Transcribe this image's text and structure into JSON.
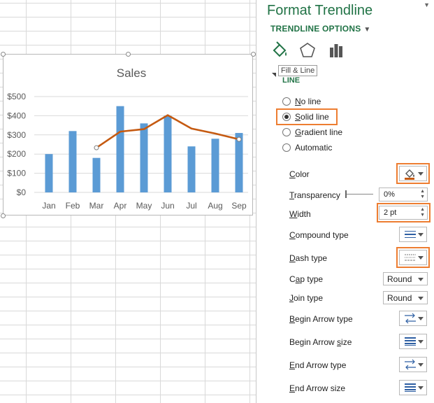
{
  "chart_data": {
    "type": "bar",
    "title": "Sales",
    "categories": [
      "Jan",
      "Feb",
      "Mar",
      "Apr",
      "May",
      "Jun",
      "Jul",
      "Aug",
      "Sep"
    ],
    "values": [
      200,
      320,
      180,
      450,
      360,
      400,
      240,
      280,
      310
    ],
    "y_ticks": [
      "$0",
      "$100",
      "$200",
      "$300",
      "$400",
      "$500"
    ],
    "ylim": [
      0,
      500
    ],
    "bar_color": "#5b9bd5",
    "trendline": {
      "type": "moving-average",
      "color": "#c55a11",
      "start_category": "Mar",
      "values": [
        233,
        317,
        330,
        403,
        333,
        307,
        277
      ]
    },
    "grid": true
  },
  "panel": {
    "title": "Format Trendline",
    "options_tab": "TRENDLINE OPTIONS",
    "icons": [
      "paint-bucket-icon",
      "pentagon-icon",
      "bar-chart-icon"
    ],
    "tooltip": "Fill & Line",
    "section": "LINE",
    "line_options": [
      {
        "label": "No line",
        "accel": "N",
        "rest": "o line",
        "checked": false
      },
      {
        "label": "Solid line",
        "accel": "S",
        "rest": "olid line",
        "checked": true
      },
      {
        "label": "Gradient line",
        "accel": "G",
        "rest": "radient line",
        "checked": false
      },
      {
        "label": "Automatic",
        "accel": "",
        "rest": "Automatic",
        "checked": false
      }
    ],
    "props": {
      "color": {
        "label": "Color",
        "accel": "C",
        "rest": "olor",
        "swatch": "#c55a11"
      },
      "transparency": {
        "label": "Transparency",
        "accel": "T",
        "rest": "ransparency",
        "value": "0%"
      },
      "width": {
        "label": "Width",
        "accel": "W",
        "rest": "idth",
        "value": "2 pt"
      },
      "compound": {
        "label": "Compound type",
        "accel": "C",
        "rest": "ompound type"
      },
      "dash": {
        "label": "Dash type",
        "accel": "D",
        "rest": "ash type"
      },
      "cap": {
        "label": "Cap type",
        "accel": "",
        "pre": "C",
        "accel2": "a",
        "rest": "p type",
        "value": "Round"
      },
      "join": {
        "label": "Join type",
        "accel": "J",
        "rest": "oin type",
        "value": "Round"
      },
      "begin_arrow_type": {
        "label": "Begin Arrow type",
        "accel": "B",
        "rest": "egin Arrow type"
      },
      "begin_arrow_size": {
        "label": "Begin Arrow size",
        "accel": "",
        "pre": "Begin Arrow ",
        "accel2": "s",
        "rest": "ize"
      },
      "end_arrow_type": {
        "label": "End Arrow type",
        "accel": "E",
        "rest": "nd Arrow type"
      },
      "end_arrow_size": {
        "label": "End Arrow size",
        "accel": "E",
        "rest": "nd Arrow size"
      }
    },
    "accent": "#217346",
    "highlight": "#ed7d31"
  }
}
